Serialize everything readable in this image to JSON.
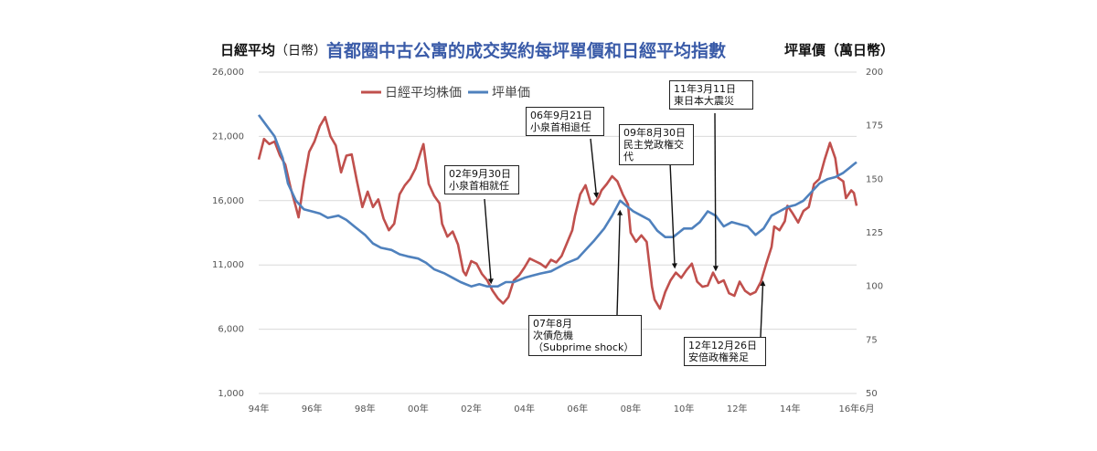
{
  "titles": {
    "left_label": "日經平均",
    "left_unit": "（日幣）",
    "main": "首都圈中古公寓的成交契約每坪單價和日經平均指數",
    "right_label": "坪單價（萬日幣）"
  },
  "chart_data": {
    "type": "line",
    "title": "首都圈中古公寓的成交契約每坪單價和日經平均指數",
    "xlabel": "",
    "ylabel_left": "日經平均（日幣）",
    "ylabel_right": "坪單價（萬日幣）",
    "x_ticks": [
      "94年",
      "96年",
      "98年",
      "00年",
      "02年",
      "04年",
      "06年",
      "08年",
      "10年",
      "12年",
      "14年",
      "16年6月"
    ],
    "y_left_ticks": [
      "26,000",
      "21,000",
      "16,000",
      "11,000",
      "6,000",
      "1,000"
    ],
    "y_right_ticks": [
      "200",
      "175",
      "150",
      "125",
      "100",
      "75",
      "50"
    ],
    "ylim_left": [
      1000,
      26000
    ],
    "ylim_right": [
      50,
      200
    ],
    "xlim": [
      1994.0,
      2016.5
    ],
    "grid": "horizontal",
    "legend_position": "top-left",
    "series": [
      {
        "name": "日經平均株価",
        "axis": "left",
        "color": "#c0504d",
        "points": [
          [
            1994.0,
            19200
          ],
          [
            1994.2,
            20800
          ],
          [
            1994.4,
            20400
          ],
          [
            1994.6,
            20600
          ],
          [
            1994.8,
            19500
          ],
          [
            1995.0,
            18800
          ],
          [
            1995.2,
            17000
          ],
          [
            1995.4,
            15500
          ],
          [
            1995.5,
            14700
          ],
          [
            1995.7,
            17500
          ],
          [
            1995.9,
            19800
          ],
          [
            1996.1,
            20600
          ],
          [
            1996.3,
            21800
          ],
          [
            1996.5,
            22500
          ],
          [
            1996.7,
            21000
          ],
          [
            1996.9,
            20300
          ],
          [
            1997.1,
            18200
          ],
          [
            1997.3,
            19500
          ],
          [
            1997.5,
            19600
          ],
          [
            1997.7,
            17500
          ],
          [
            1997.9,
            15500
          ],
          [
            1998.1,
            16700
          ],
          [
            1998.3,
            15500
          ],
          [
            1998.5,
            16100
          ],
          [
            1998.7,
            14600
          ],
          [
            1998.9,
            13700
          ],
          [
            1999.1,
            14200
          ],
          [
            1999.3,
            16500
          ],
          [
            1999.5,
            17200
          ],
          [
            1999.7,
            17700
          ],
          [
            1999.9,
            18500
          ],
          [
            2000.1,
            19800
          ],
          [
            2000.2,
            20400
          ],
          [
            2000.4,
            17300
          ],
          [
            2000.6,
            16400
          ],
          [
            2000.8,
            15800
          ],
          [
            2000.9,
            14200
          ],
          [
            2001.1,
            13200
          ],
          [
            2001.3,
            13600
          ],
          [
            2001.5,
            12600
          ],
          [
            2001.7,
            10500
          ],
          [
            2001.8,
            10200
          ],
          [
            2002.0,
            11300
          ],
          [
            2002.2,
            11100
          ],
          [
            2002.4,
            10300
          ],
          [
            2002.6,
            9800
          ],
          [
            2002.8,
            9000
          ],
          [
            2003.0,
            8400
          ],
          [
            2003.2,
            8000
          ],
          [
            2003.4,
            8500
          ],
          [
            2003.6,
            9800
          ],
          [
            2003.8,
            10200
          ],
          [
            2004.0,
            10800
          ],
          [
            2004.2,
            11500
          ],
          [
            2004.4,
            11300
          ],
          [
            2004.6,
            11100
          ],
          [
            2004.8,
            10800
          ],
          [
            2005.0,
            11400
          ],
          [
            2005.2,
            11200
          ],
          [
            2005.4,
            11700
          ],
          [
            2005.6,
            12700
          ],
          [
            2005.8,
            13700
          ],
          [
            2005.9,
            14800
          ],
          [
            2006.1,
            16500
          ],
          [
            2006.3,
            17200
          ],
          [
            2006.5,
            15800
          ],
          [
            2006.6,
            15700
          ],
          [
            2006.8,
            16300
          ],
          [
            2006.9,
            16800
          ],
          [
            2007.1,
            17300
          ],
          [
            2007.3,
            17900
          ],
          [
            2007.5,
            17500
          ],
          [
            2007.7,
            16500
          ],
          [
            2007.9,
            15700
          ],
          [
            2008.0,
            13500
          ],
          [
            2008.2,
            12800
          ],
          [
            2008.4,
            13300
          ],
          [
            2008.6,
            12800
          ],
          [
            2008.8,
            9300
          ],
          [
            2008.9,
            8300
          ],
          [
            2009.1,
            7600
          ],
          [
            2009.3,
            8900
          ],
          [
            2009.5,
            9800
          ],
          [
            2009.7,
            10400
          ],
          [
            2009.9,
            10000
          ],
          [
            2010.1,
            10600
          ],
          [
            2010.3,
            11100
          ],
          [
            2010.5,
            9700
          ],
          [
            2010.7,
            9300
          ],
          [
            2010.9,
            9400
          ],
          [
            2011.1,
            10400
          ],
          [
            2011.3,
            9600
          ],
          [
            2011.5,
            9800
          ],
          [
            2011.7,
            8800
          ],
          [
            2011.9,
            8600
          ],
          [
            2012.1,
            9700
          ],
          [
            2012.3,
            9000
          ],
          [
            2012.5,
            8700
          ],
          [
            2012.7,
            8900
          ],
          [
            2012.9,
            9700
          ],
          [
            2013.1,
            11100
          ],
          [
            2013.3,
            12400
          ],
          [
            2013.4,
            14000
          ],
          [
            2013.6,
            13700
          ],
          [
            2013.8,
            14400
          ],
          [
            2013.9,
            15600
          ],
          [
            2014.1,
            15000
          ],
          [
            2014.3,
            14300
          ],
          [
            2014.5,
            15200
          ],
          [
            2014.7,
            15500
          ],
          [
            2014.9,
            17300
          ],
          [
            2015.1,
            17700
          ],
          [
            2015.3,
            19200
          ],
          [
            2015.5,
            20500
          ],
          [
            2015.7,
            19300
          ],
          [
            2015.8,
            17800
          ],
          [
            2016.0,
            17500
          ],
          [
            2016.1,
            16200
          ],
          [
            2016.3,
            16800
          ],
          [
            2016.4,
            16600
          ],
          [
            2016.5,
            15600
          ]
        ]
      },
      {
        "name": "坪単価",
        "axis": "right",
        "color": "#4f81bd",
        "points": [
          [
            1994.0,
            180
          ],
          [
            1994.3,
            175
          ],
          [
            1994.6,
            170
          ],
          [
            1994.9,
            160
          ],
          [
            1995.1,
            148
          ],
          [
            1995.4,
            140
          ],
          [
            1995.7,
            136
          ],
          [
            1996.0,
            135
          ],
          [
            1996.3,
            134
          ],
          [
            1996.6,
            132
          ],
          [
            1997.0,
            133
          ],
          [
            1997.3,
            131
          ],
          [
            1997.6,
            128
          ],
          [
            1998.0,
            124
          ],
          [
            1998.3,
            120
          ],
          [
            1998.6,
            118
          ],
          [
            1999.0,
            117
          ],
          [
            1999.3,
            115
          ],
          [
            1999.6,
            114
          ],
          [
            2000.0,
            113
          ],
          [
            2000.3,
            111
          ],
          [
            2000.6,
            108
          ],
          [
            2001.0,
            106
          ],
          [
            2001.3,
            104
          ],
          [
            2001.6,
            102
          ],
          [
            2002.0,
            100
          ],
          [
            2002.3,
            101
          ],
          [
            2002.6,
            100
          ],
          [
            2003.0,
            100
          ],
          [
            2003.3,
            102
          ],
          [
            2003.6,
            102
          ],
          [
            2004.0,
            104
          ],
          [
            2004.3,
            105
          ],
          [
            2004.6,
            106
          ],
          [
            2005.0,
            107
          ],
          [
            2005.3,
            109
          ],
          [
            2005.6,
            111
          ],
          [
            2006.0,
            113
          ],
          [
            2006.3,
            117
          ],
          [
            2006.6,
            121
          ],
          [
            2007.0,
            127
          ],
          [
            2007.3,
            133
          ],
          [
            2007.6,
            140
          ],
          [
            2007.8,
            138
          ],
          [
            2008.1,
            135
          ],
          [
            2008.4,
            133
          ],
          [
            2008.7,
            131
          ],
          [
            2009.0,
            126
          ],
          [
            2009.3,
            123
          ],
          [
            2009.6,
            123
          ],
          [
            2010.0,
            127
          ],
          [
            2010.3,
            127
          ],
          [
            2010.6,
            130
          ],
          [
            2010.9,
            135
          ],
          [
            2011.2,
            133
          ],
          [
            2011.5,
            128
          ],
          [
            2011.8,
            130
          ],
          [
            2012.1,
            129
          ],
          [
            2012.4,
            128
          ],
          [
            2012.7,
            124
          ],
          [
            2013.0,
            127
          ],
          [
            2013.3,
            133
          ],
          [
            2013.6,
            135
          ],
          [
            2013.9,
            137
          ],
          [
            2014.2,
            138
          ],
          [
            2014.5,
            140
          ],
          [
            2014.8,
            144
          ],
          [
            2015.1,
            148
          ],
          [
            2015.4,
            150
          ],
          [
            2015.7,
            151
          ],
          [
            2016.0,
            153
          ],
          [
            2016.2,
            155
          ],
          [
            2016.4,
            157
          ],
          [
            2016.5,
            158
          ]
        ]
      }
    ],
    "annotations": [
      {
        "id": "koizumi_in",
        "text": "02年9月30日\n小泉首相就任",
        "x": 2002.75,
        "y": 9500,
        "axis": "left"
      },
      {
        "id": "koizumi_out",
        "text": "06年9月21日\n小泉首相退任",
        "x": 2006.72,
        "y": 16200,
        "axis": "left"
      },
      {
        "id": "subprime",
        "text": "07年8月\n次債危機\n（Subprime shock）",
        "x": 2007.6,
        "y": 15300,
        "axis": "left"
      },
      {
        "id": "dpj",
        "text": "09年8月30日\n民主党政権交\n代",
        "x": 2009.66,
        "y": 10700,
        "axis": "left"
      },
      {
        "id": "quake",
        "text": "11年3月11日\n東日本大震災",
        "x": 2011.2,
        "y": 10500,
        "axis": "left"
      },
      {
        "id": "abe",
        "text": "12年12月26日\n安倍政権発足",
        "x": 2012.98,
        "y": 9800,
        "axis": "left"
      }
    ]
  }
}
